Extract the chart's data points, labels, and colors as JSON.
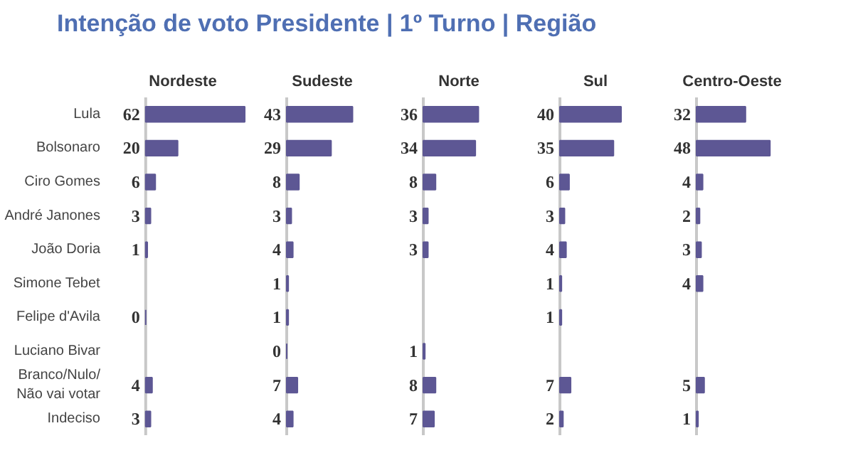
{
  "chart_data": [
    {
      "type": "other",
      "title": "Intenção de voto Presidente | 1º Turno | Região"
    },
    {
      "type": "bar",
      "orientation": "horizontal",
      "title": "Nordeste",
      "tick_labels": "y",
      "data_labels": true,
      "color": "#5d5794",
      "categories": [
        "Lula",
        "Bolsonaro",
        "Ciro Gomes",
        "André Janones",
        "João Doria",
        "Simone Tebet",
        "Felipe d'Avila",
        "Luciano Bivar",
        "Branco/Nulo/\nNão vai votar",
        "Indeciso"
      ],
      "values": [
        62,
        20,
        6,
        3,
        1,
        null,
        0,
        null,
        4,
        3
      ]
    },
    {
      "type": "bar",
      "orientation": "horizontal",
      "title": "Sudeste",
      "tick_labels": false,
      "data_labels": true,
      "color": "#5d5794",
      "categories": [
        null,
        null,
        null,
        null,
        null,
        null,
        null,
        null,
        null,
        null
      ],
      "values": [
        43,
        29,
        8,
        3,
        4,
        1,
        1,
        0,
        7,
        4
      ]
    },
    {
      "type": "bar",
      "orientation": "horizontal",
      "title": "Norte",
      "tick_labels": false,
      "data_labels": true,
      "color": "#5d5794",
      "categories": [
        null,
        null,
        null,
        null,
        null,
        null,
        null,
        null,
        null,
        null
      ],
      "values": [
        36,
        34,
        8,
        3,
        3,
        null,
        null,
        1,
        8,
        7
      ]
    },
    {
      "type": "bar",
      "orientation": "horizontal",
      "title": "Sul",
      "tick_labels": false,
      "data_labels": true,
      "color": "#5d5794",
      "categories": [
        null,
        null,
        null,
        null,
        null,
        null,
        null,
        null,
        null,
        null
      ],
      "values": [
        40,
        35,
        6,
        3,
        4,
        1,
        1,
        null,
        7,
        2
      ]
    },
    {
      "type": "bar",
      "orientation": "horizontal",
      "title": "Centro-Oeste",
      "tick_labels": false,
      "data_labels": true,
      "color": "#5d5794",
      "categories": [
        null,
        null,
        null,
        null,
        null,
        null,
        null,
        null,
        null,
        null
      ],
      "values": [
        32,
        48,
        4,
        2,
        3,
        4,
        null,
        null,
        5,
        1
      ]
    }
  ]
}
